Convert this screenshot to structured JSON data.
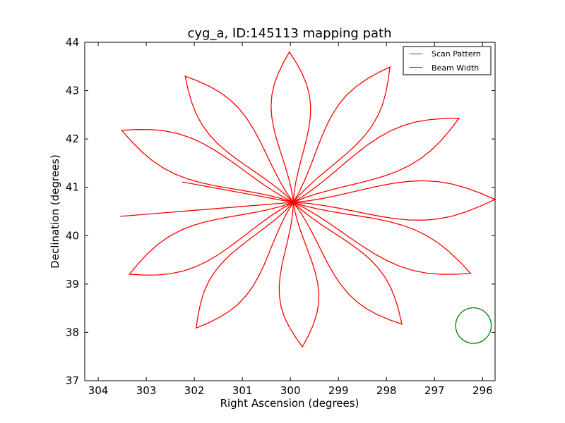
{
  "chart_data": {
    "type": "line",
    "title": "cyg_a, ID:145113 mapping path",
    "xlabel": "Right Ascension (degrees)",
    "ylabel": "Declination (degrees)",
    "xlim": [
      304.28,
      295.74
    ],
    "ylim": [
      37,
      44
    ],
    "xticks": [
      304,
      303,
      302,
      301,
      300,
      299,
      298,
      297,
      296
    ],
    "yticks": [
      37,
      38,
      39,
      40,
      41,
      42,
      43,
      44
    ],
    "grid": false,
    "legend": {
      "placement": "top-right",
      "entries": [
        {
          "label": "Scan Pattern",
          "color": "#ff0000"
        },
        {
          "label": "Beam Width",
          "color": "#008000"
        }
      ]
    },
    "series": [
      {
        "name": "Scan Pattern",
        "color": "#ff0000",
        "center": [
          299.94,
          40.69
        ],
        "petal_tips": [
          [
            300.02,
            43.8
          ],
          [
            297.93,
            43.49
          ],
          [
            296.49,
            42.43
          ],
          [
            295.74,
            40.75
          ],
          [
            296.25,
            39.22
          ],
          [
            297.68,
            38.17
          ],
          [
            299.75,
            37.7
          ],
          [
            301.96,
            38.09
          ],
          [
            303.35,
            39.2
          ],
          [
            303.51,
            42.18
          ],
          [
            302.19,
            43.3
          ]
        ],
        "open_ends": [
          [
            303.54,
            40.4
          ],
          [
            302.25,
            41.11
          ]
        ]
      },
      {
        "name": "Beam Width",
        "color": "#008000",
        "center": [
          296.19,
          38.14
        ],
        "radius_deg": 0.37
      }
    ]
  }
}
